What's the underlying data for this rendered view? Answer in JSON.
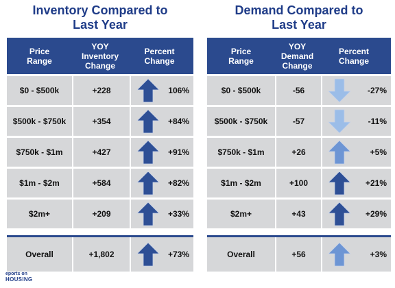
{
  "inventory": {
    "title": "Inventory Compared to\nLast Year",
    "headers": [
      "Price\nRange",
      "YOY\nInventory\nChange",
      "Percent\nChange"
    ],
    "rows": [
      {
        "range": "$0 - $500k",
        "change": "+228",
        "pct": "106%",
        "arrow": "up",
        "tone": "dark"
      },
      {
        "range": "$500k - $750k",
        "change": "+354",
        "pct": "+84%",
        "arrow": "up",
        "tone": "dark"
      },
      {
        "range": "$750k - $1m",
        "change": "+427",
        "pct": "+91%",
        "arrow": "up",
        "tone": "dark"
      },
      {
        "range": "$1m - $2m",
        "change": "+584",
        "pct": "+82%",
        "arrow": "up",
        "tone": "dark"
      },
      {
        "range": "$2m+",
        "change": "+209",
        "pct": "+33%",
        "arrow": "up",
        "tone": "dark"
      }
    ],
    "overall": {
      "range": "Overall",
      "change": "+1,802",
      "pct": "+73%",
      "arrow": "up",
      "tone": "dark"
    }
  },
  "demand": {
    "title": "Demand Compared to\nLast Year",
    "headers": [
      "Price\nRange",
      "YOY\nDemand\nChange",
      "Percent\nChange"
    ],
    "rows": [
      {
        "range": "$0 - $500k",
        "change": "-56",
        "pct": "-27%",
        "arrow": "down",
        "tone": "light"
      },
      {
        "range": "$500k - $750k",
        "change": "-57",
        "pct": "-11%",
        "arrow": "down",
        "tone": "light"
      },
      {
        "range": "$750k - $1m",
        "change": "+26",
        "pct": "+5%",
        "arrow": "up",
        "tone": "medium"
      },
      {
        "range": "$1m - $2m",
        "change": "+100",
        "pct": "+21%",
        "arrow": "up",
        "tone": "dark"
      },
      {
        "range": "$2m+",
        "change": "+43",
        "pct": "+29%",
        "arrow": "up",
        "tone": "dark"
      }
    ],
    "overall": {
      "range": "Overall",
      "change": "+56",
      "pct": "+3%",
      "arrow": "up",
      "tone": "medium"
    }
  },
  "colors": {
    "dark": "#2e4f95",
    "medium": "#6d95d4",
    "light": "#9bbde8",
    "header": "#2b4a8e"
  },
  "logo": {
    "top": "eports on",
    "bottom": "HOUSING"
  }
}
